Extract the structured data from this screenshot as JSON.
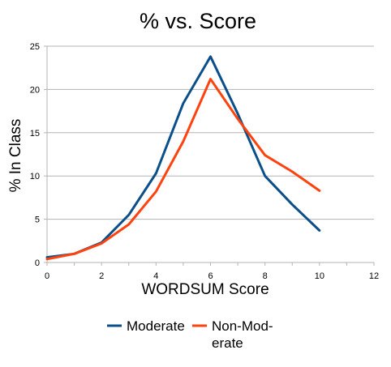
{
  "chart_data": {
    "type": "line",
    "title": "% vs. Score",
    "xlabel": "WORDSUM Score",
    "ylabel": "% In Class",
    "xlim": [
      0,
      12
    ],
    "ylim": [
      0,
      25
    ],
    "x_ticks": [
      0,
      2,
      4,
      6,
      8,
      10,
      12
    ],
    "y_ticks": [
      0,
      5,
      10,
      15,
      20,
      25
    ],
    "grid": "horizontal",
    "legend_position": "bottom",
    "x": [
      0,
      1,
      2,
      3,
      4,
      5,
      6,
      7,
      8,
      9,
      10
    ],
    "series": [
      {
        "name": "Moderate",
        "color": "#0b4f8a",
        "values": [
          0.6,
          1.0,
          2.3,
          5.5,
          10.3,
          18.4,
          23.8,
          17.2,
          10.0,
          6.7,
          3.7
        ]
      },
      {
        "name": "Non-Mod-erate",
        "legend_lines": [
          "Non-Mod-",
          "erate"
        ],
        "color": "#ff420e",
        "values": [
          0.4,
          1.0,
          2.2,
          4.4,
          8.2,
          14.0,
          21.2,
          16.6,
          12.4,
          10.5,
          8.3
        ]
      }
    ]
  }
}
